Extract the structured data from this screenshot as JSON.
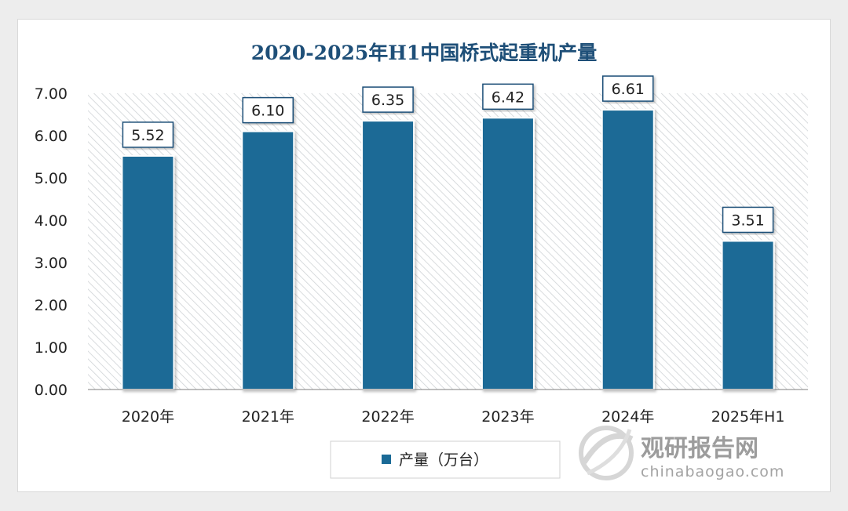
{
  "colors": {
    "bar": "#1a6a96",
    "bar_dark": "#14557a",
    "title": "#1e4f78",
    "hatch": "#cfd3d6",
    "label_border": "#1e4f78"
  },
  "legend": {
    "position": "bottom-center"
  },
  "watermark": {
    "name": "观研报告网",
    "url": "chinabaogao.com",
    "icon": "globe-logo-icon"
  },
  "chart_data": {
    "type": "bar",
    "title": "2020-2025年H1中国桥式起重机产量",
    "categories": [
      "2020年",
      "2021年",
      "2022年",
      "2023年",
      "2024年",
      "2025年H1"
    ],
    "series": [
      {
        "name": "产量（万台）",
        "values": [
          5.52,
          6.1,
          6.35,
          6.42,
          6.61,
          3.51
        ],
        "value_labels": [
          "5.52",
          "6.10",
          "6.35",
          "6.42",
          "6.61",
          "3.51"
        ]
      }
    ],
    "xlabel": "",
    "ylabel": "",
    "ylim": [
      0,
      7
    ],
    "yticks": [
      0,
      1,
      2,
      3,
      4,
      5,
      6,
      7
    ],
    "ytick_labels": [
      "0.00",
      "1.00",
      "2.00",
      "3.00",
      "4.00",
      "5.00",
      "6.00",
      "7.00"
    ],
    "grid": false,
    "plot_background": "diagonal-hatch"
  }
}
